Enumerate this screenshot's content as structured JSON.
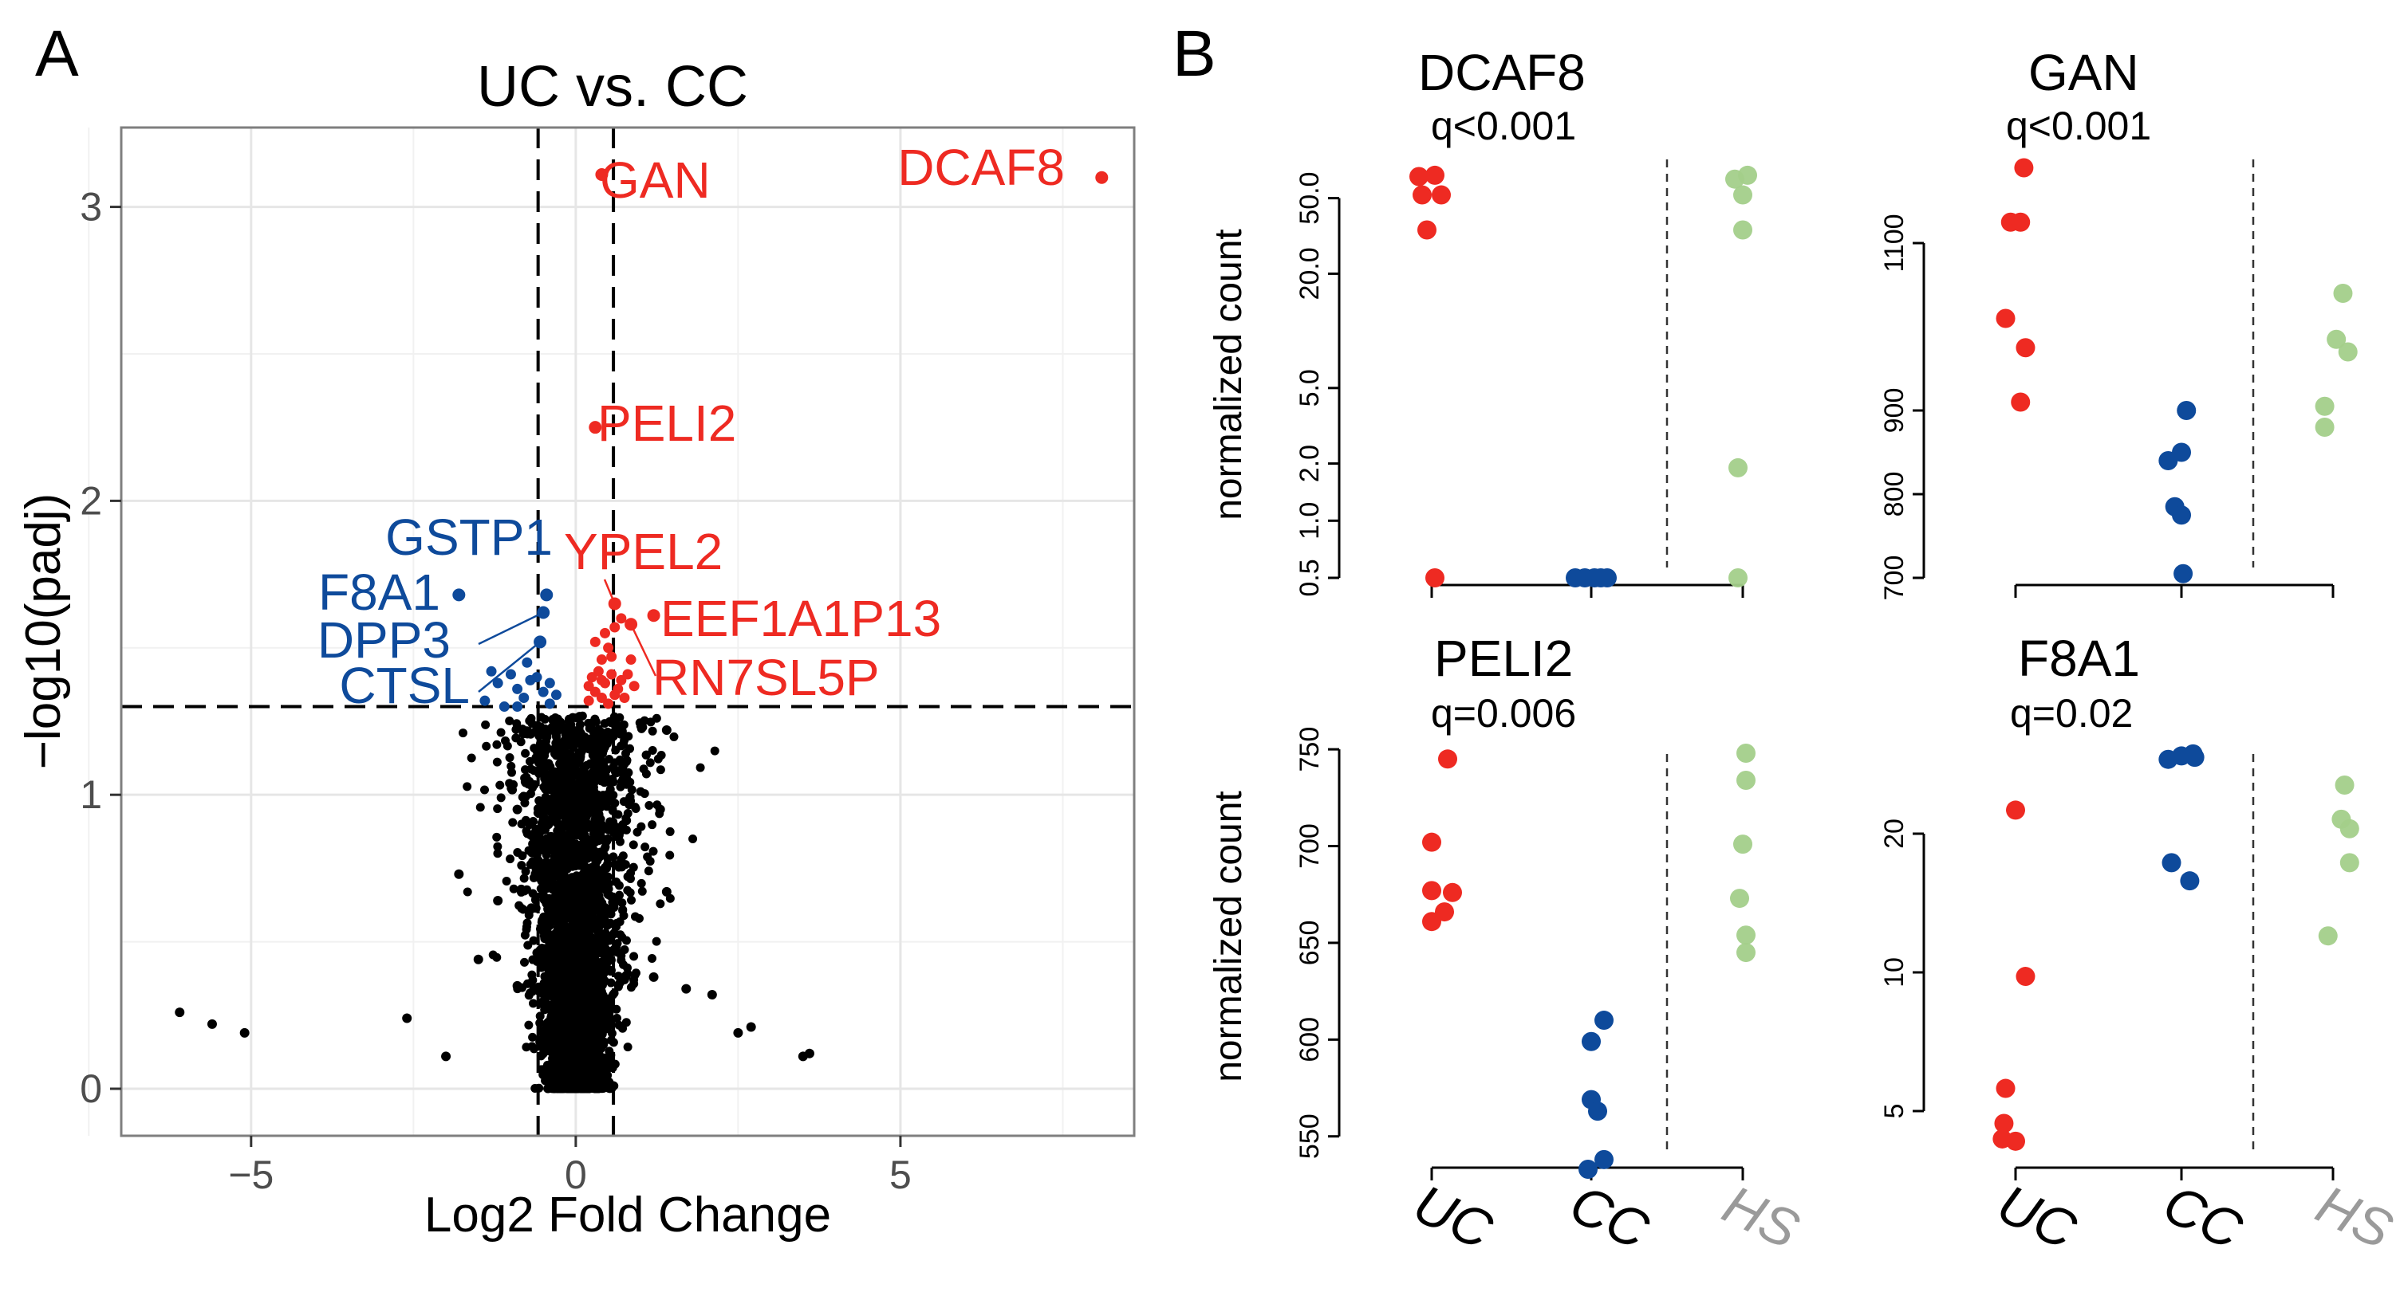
{
  "panel_a": {
    "letter": "A",
    "colors": {
      "up": "#ee2a22",
      "down": "#0e4a9b",
      "ns": "#000000",
      "grid": "#e6e6e6",
      "frame": "#7f7f7f"
    }
  },
  "panel_b": {
    "letter": "B",
    "colors": {
      "UC": "#ee2a22",
      "CC": "#0e4a9b",
      "HS": "#a3cf8a",
      "axis": "#000000",
      "hs_label": "#9a9a9a"
    }
  },
  "chart_data": [
    {
      "type": "scatter",
      "kind": "volcano",
      "title": "UC vs. CC",
      "xlabel": "Log2 Fold Change",
      "ylabel": "−log10(padj)",
      "xlim": [
        -7.0,
        8.6
      ],
      "ylim": [
        -0.16,
        3.27
      ],
      "xticks": [
        -5,
        0,
        5
      ],
      "xtick_labels": [
        "−5",
        "0",
        "5"
      ],
      "yticks": [
        0,
        1,
        2,
        3
      ],
      "ytick_labels": [
        "0",
        "1",
        "2",
        "3"
      ],
      "grid": true,
      "thresholds": {
        "log2fc": [
          -0.58,
          0.58
        ],
        "neg_log10_padj": 1.3
      },
      "ns_points": [
        [
          -6.1,
          0.26
        ],
        [
          -5.6,
          0.22
        ],
        [
          -5.1,
          0.19
        ],
        [
          -2.6,
          0.24
        ],
        [
          -2.0,
          0.11
        ],
        [
          -1.8,
          0.73
        ],
        [
          -1.5,
          0.44
        ],
        [
          -1.2,
          0.64
        ],
        [
          -0.9,
          0.95
        ],
        [
          -0.9,
          0.35
        ],
        [
          -0.6,
          1.22
        ],
        [
          -0.5,
          1.1
        ],
        [
          1.3,
          0.95
        ],
        [
          1.4,
          0.67
        ],
        [
          1.2,
          0.38
        ],
        [
          1.7,
          0.34
        ],
        [
          2.1,
          0.32
        ],
        [
          2.5,
          0.19
        ],
        [
          2.7,
          0.21
        ],
        [
          3.5,
          0.11
        ],
        [
          3.6,
          0.12
        ],
        [
          0.5,
          1.2
        ],
        [
          0.3,
          1.1
        ],
        [
          1.4,
          1.22
        ]
      ],
      "labeled_points": [
        {
          "gene": "DCAF8",
          "x": 8.1,
          "y": 3.1,
          "group": "up"
        },
        {
          "gene": "GAN",
          "x": 0.4,
          "y": 3.11,
          "group": "up"
        },
        {
          "gene": "PELI2",
          "x": 0.3,
          "y": 2.25,
          "group": "up"
        },
        {
          "gene": "YPEL2",
          "x": 0.6,
          "y": 1.65,
          "group": "up"
        },
        {
          "gene": "EEF1A1P13",
          "x": 1.2,
          "y": 1.61,
          "group": "up"
        },
        {
          "gene": "RN7SL5P",
          "x": 0.85,
          "y": 1.58,
          "group": "up"
        },
        {
          "gene": "GSTP1",
          "x": -0.45,
          "y": 1.68,
          "group": "down"
        },
        {
          "gene": "F8A1",
          "x": -1.8,
          "y": 1.68,
          "group": "down"
        },
        {
          "gene": "DPP3",
          "x": -0.5,
          "y": 1.62,
          "group": "down"
        },
        {
          "gene": "CTSL",
          "x": -0.55,
          "y": 1.52,
          "group": "down"
        }
      ],
      "up_points": [
        [
          0.2,
          1.32
        ],
        [
          0.3,
          1.35
        ],
        [
          0.4,
          1.33
        ],
        [
          0.5,
          1.31
        ],
        [
          0.6,
          1.34
        ],
        [
          0.25,
          1.4
        ],
        [
          0.35,
          1.42
        ],
        [
          0.45,
          1.38
        ],
        [
          0.55,
          1.41
        ],
        [
          0.4,
          1.46
        ],
        [
          0.55,
          1.47
        ],
        [
          0.3,
          1.52
        ],
        [
          0.45,
          1.55
        ],
        [
          0.5,
          1.5
        ],
        [
          0.65,
          1.36
        ],
        [
          0.7,
          1.39
        ],
        [
          0.8,
          1.41
        ],
        [
          0.9,
          1.37
        ],
        [
          0.75,
          1.33
        ],
        [
          0.85,
          1.46
        ],
        [
          0.6,
          1.57
        ],
        [
          0.7,
          1.6
        ],
        [
          0.2,
          1.37
        ],
        [
          0.4,
          1.39
        ]
      ],
      "down_points": [
        [
          -1.4,
          1.32
        ],
        [
          -1.2,
          1.38
        ],
        [
          -1.0,
          1.41
        ],
        [
          -0.9,
          1.36
        ],
        [
          -0.8,
          1.33
        ],
        [
          -0.7,
          1.39
        ],
        [
          -1.3,
          1.42
        ],
        [
          -0.6,
          1.4
        ],
        [
          -0.5,
          1.35
        ],
        [
          -0.4,
          1.31
        ],
        [
          -0.3,
          1.34
        ],
        [
          -0.9,
          1.3
        ],
        [
          -1.1,
          1.3
        ],
        [
          -0.75,
          1.45
        ],
        [
          -0.4,
          1.38
        ]
      ]
    },
    {
      "type": "scatter",
      "kind": "strip",
      "gene": "DCAF8",
      "stat": "q<0.001",
      "ylabel": "normalized count",
      "yscale": "log",
      "ylim": [
        0.5,
        80
      ],
      "yticks": [
        0.5,
        1.0,
        2.0,
        5.0,
        20.0,
        50.0
      ],
      "ytick_labels": [
        "0.5",
        "1.0",
        "2.0",
        "5.0",
        "20.0",
        "50.0"
      ],
      "categories": [
        "UC",
        "CC",
        "HS"
      ],
      "series": [
        {
          "name": "UC",
          "points": [
            [
              -0.08,
              65
            ],
            [
              0.02,
              66
            ],
            [
              -0.06,
              52
            ],
            [
              0.06,
              52
            ],
            [
              -0.03,
              34
            ],
            [
              0.02,
              0.5
            ]
          ]
        },
        {
          "name": "CC",
          "points": [
            [
              -0.1,
              0.5
            ],
            [
              -0.04,
              0.5
            ],
            [
              0.02,
              0.5
            ],
            [
              0.06,
              0.5
            ],
            [
              0.1,
              0.5
            ]
          ]
        },
        {
          "name": "HS",
          "points": [
            [
              -0.05,
              63
            ],
            [
              0.03,
              66
            ],
            [
              0.0,
              52
            ],
            [
              0.0,
              34
            ],
            [
              -0.03,
              1.9
            ],
            [
              -0.03,
              0.5
            ]
          ]
        }
      ]
    },
    {
      "type": "scatter",
      "kind": "strip",
      "gene": "GAN",
      "stat": "q<0.001",
      "ylabel": "",
      "yscale": "linear",
      "ylim": [
        700,
        1200
      ],
      "yticks": [
        700,
        800,
        900,
        1100
      ],
      "ytick_labels": [
        "700",
        "800",
        "900",
        "1100"
      ],
      "categories": [
        "UC",
        "CC",
        "HS"
      ],
      "series": [
        {
          "name": "UC",
          "points": [
            [
              0.05,
              1190
            ],
            [
              -0.03,
              1125
            ],
            [
              0.03,
              1125
            ],
            [
              -0.06,
              1010
            ],
            [
              0.06,
              975
            ],
            [
              0.03,
              910
            ]
          ]
        },
        {
          "name": "CC",
          "points": [
            [
              0.03,
              900
            ],
            [
              0.0,
              850
            ],
            [
              -0.08,
              840
            ],
            [
              -0.04,
              785
            ],
            [
              0.0,
              775
            ],
            [
              0.01,
              705
            ]
          ]
        },
        {
          "name": "HS",
          "points": [
            [
              0.06,
              1040
            ],
            [
              0.02,
              985
            ],
            [
              0.09,
              970
            ],
            [
              -0.05,
              905
            ],
            [
              -0.05,
              880
            ]
          ]
        }
      ]
    },
    {
      "type": "scatter",
      "kind": "strip",
      "gene": "PELI2",
      "stat": "q=0.006",
      "ylabel": "normalized count",
      "yscale": "linear",
      "ylim": [
        540,
        755
      ],
      "yticks": [
        550,
        600,
        650,
        700,
        750
      ],
      "ytick_labels": [
        "550",
        "600",
        "650",
        "700",
        "750"
      ],
      "categories": [
        "UC",
        "CC",
        "HS"
      ],
      "series": [
        {
          "name": "UC",
          "points": [
            [
              0.1,
              745
            ],
            [
              0.0,
              702
            ],
            [
              0.0,
              677
            ],
            [
              0.13,
              676
            ],
            [
              0.08,
              666
            ],
            [
              0.0,
              661
            ]
          ]
        },
        {
          "name": "CC",
          "points": [
            [
              0.08,
              610
            ],
            [
              0.0,
              599
            ],
            [
              0.0,
              569
            ],
            [
              0.04,
              563
            ],
            [
              0.08,
              538
            ],
            [
              -0.02,
              533
            ]
          ]
        },
        {
          "name": "HS",
          "points": [
            [
              0.02,
              748
            ],
            [
              0.02,
              734
            ],
            [
              0.0,
              701
            ],
            [
              -0.02,
              673
            ],
            [
              0.02,
              654
            ],
            [
              0.02,
              645
            ]
          ]
        }
      ]
    },
    {
      "type": "scatter",
      "kind": "strip",
      "gene": "F8A1",
      "stat": "q=0.02",
      "ylabel": "",
      "yscale": "log",
      "ylim": [
        4,
        32
      ],
      "yticks": [
        5,
        10,
        20
      ],
      "ytick_labels": [
        "5",
        "10",
        "20"
      ],
      "categories": [
        "UC",
        "CC",
        "HS"
      ],
      "series": [
        {
          "name": "UC",
          "points": [
            [
              0.0,
              22.5
            ],
            [
              0.06,
              9.8
            ],
            [
              -0.06,
              5.6
            ],
            [
              -0.07,
              4.7
            ],
            [
              -0.08,
              4.35
            ],
            [
              0.0,
              4.3
            ]
          ]
        },
        {
          "name": "CC",
          "points": [
            [
              -0.08,
              29
            ],
            [
              0.0,
              29.5
            ],
            [
              0.07,
              29.8
            ],
            [
              0.08,
              29.3
            ],
            [
              -0.06,
              17.3
            ],
            [
              0.05,
              15.8
            ]
          ]
        },
        {
          "name": "HS",
          "points": [
            [
              0.07,
              25.5
            ],
            [
              0.05,
              21.5
            ],
            [
              0.1,
              20.5
            ],
            [
              0.1,
              17.3
            ],
            [
              -0.03,
              12
            ]
          ]
        }
      ]
    }
  ]
}
